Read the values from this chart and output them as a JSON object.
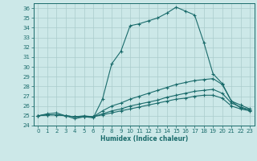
{
  "xlabel": "Humidex (Indice chaleur)",
  "ylabel": "",
  "xlim": [
    -0.5,
    23.5
  ],
  "ylim": [
    24,
    36.5
  ],
  "yticks": [
    24,
    25,
    26,
    27,
    28,
    29,
    30,
    31,
    32,
    33,
    34,
    35,
    36
  ],
  "xticks": [
    0,
    1,
    2,
    3,
    4,
    5,
    6,
    7,
    8,
    9,
    10,
    11,
    12,
    13,
    14,
    15,
    16,
    17,
    18,
    19,
    20,
    21,
    22,
    23
  ],
  "bg_color": "#cce8e8",
  "line_color": "#1a6b6b",
  "grid_color": "#aacccc",
  "lines": [
    {
      "x": [
        0,
        1,
        2,
        3,
        4,
        5,
        6,
        7,
        8,
        9,
        10,
        11,
        12,
        13,
        14,
        15,
        16,
        17,
        18,
        19,
        20,
        21,
        22,
        23
      ],
      "y": [
        25.0,
        25.2,
        25.3,
        25.0,
        24.7,
        24.9,
        24.8,
        26.7,
        30.3,
        31.6,
        34.2,
        34.4,
        34.7,
        35.0,
        35.5,
        36.1,
        35.7,
        35.3,
        32.5,
        29.3,
        28.3,
        26.5,
        25.8,
        25.6
      ],
      "marker": "+"
    },
    {
      "x": [
        0,
        1,
        2,
        3,
        4,
        5,
        6,
        7,
        8,
        9,
        10,
        11,
        12,
        13,
        14,
        15,
        16,
        17,
        18,
        19,
        20,
        21,
        22,
        23
      ],
      "y": [
        25.0,
        25.1,
        25.1,
        25.0,
        24.9,
        25.0,
        24.9,
        25.5,
        26.0,
        26.3,
        26.7,
        27.0,
        27.3,
        27.6,
        27.9,
        28.2,
        28.4,
        28.6,
        28.7,
        28.8,
        28.2,
        26.5,
        26.1,
        25.7
      ],
      "marker": "+"
    },
    {
      "x": [
        0,
        1,
        2,
        3,
        4,
        5,
        6,
        7,
        8,
        9,
        10,
        11,
        12,
        13,
        14,
        15,
        16,
        17,
        18,
        19,
        20,
        21,
        22,
        23
      ],
      "y": [
        25.0,
        25.1,
        25.1,
        25.0,
        24.9,
        24.9,
        24.9,
        25.2,
        25.5,
        25.7,
        26.0,
        26.2,
        26.4,
        26.6,
        26.9,
        27.1,
        27.3,
        27.5,
        27.6,
        27.7,
        27.3,
        26.3,
        25.9,
        25.6
      ],
      "marker": "+"
    },
    {
      "x": [
        0,
        1,
        2,
        3,
        4,
        5,
        6,
        7,
        8,
        9,
        10,
        11,
        12,
        13,
        14,
        15,
        16,
        17,
        18,
        19,
        20,
        21,
        22,
        23
      ],
      "y": [
        25.0,
        25.1,
        25.1,
        25.0,
        24.9,
        24.9,
        24.9,
        25.1,
        25.3,
        25.5,
        25.7,
        25.9,
        26.1,
        26.3,
        26.5,
        26.7,
        26.8,
        27.0,
        27.1,
        27.1,
        26.8,
        26.0,
        25.7,
        25.5
      ],
      "marker": "+"
    }
  ]
}
